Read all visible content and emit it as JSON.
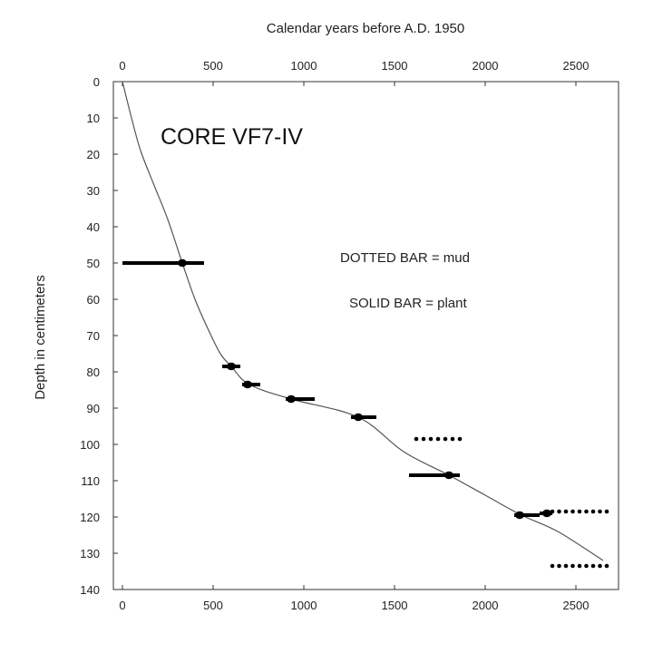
{
  "chart_data": {
    "type": "scatter",
    "title": "CORE VF7-IV",
    "xlabel": "Calendar years before A.D. 1950",
    "ylabel": "Depth in centimeters",
    "xlim": [
      0,
      2700
    ],
    "ylim": [
      0,
      140
    ],
    "x_ticks": [
      0,
      500,
      1000,
      1500,
      2000,
      2500
    ],
    "y_ticks": [
      0,
      10,
      20,
      30,
      40,
      50,
      60,
      70,
      80,
      90,
      100,
      110,
      120,
      130,
      140
    ],
    "x_axis_top": true,
    "y_inverted": true,
    "grid": false,
    "legend": {
      "dotted": "DOTTED BAR = mud",
      "solid": "SOLID BAR = plant"
    },
    "age_depth_curve": [
      {
        "x": 0,
        "y": 0
      },
      {
        "x": 50,
        "y": 10
      },
      {
        "x": 100,
        "y": 19
      },
      {
        "x": 170,
        "y": 28
      },
      {
        "x": 250,
        "y": 38
      },
      {
        "x": 330,
        "y": 50
      },
      {
        "x": 400,
        "y": 60
      },
      {
        "x": 470,
        "y": 68
      },
      {
        "x": 540,
        "y": 75
      },
      {
        "x": 600,
        "y": 78.5
      },
      {
        "x": 700,
        "y": 83.5
      },
      {
        "x": 930,
        "y": 87.5
      },
      {
        "x": 1300,
        "y": 92.5
      },
      {
        "x": 1550,
        "y": 102
      },
      {
        "x": 1800,
        "y": 108.5
      },
      {
        "x": 2000,
        "y": 114
      },
      {
        "x": 2200,
        "y": 119.5
      },
      {
        "x": 2400,
        "y": 124
      },
      {
        "x": 2650,
        "y": 132
      }
    ],
    "series": [
      {
        "type": "plant",
        "points": [
          {
            "x": 330,
            "y": 50,
            "xmin": 0,
            "xmax": 450
          },
          {
            "x": 600,
            "y": 78.5,
            "xmin": 550,
            "xmax": 650
          },
          {
            "x": 690,
            "y": 83.5,
            "xmin": 660,
            "xmax": 760
          },
          {
            "x": 930,
            "y": 87.5,
            "xmin": 900,
            "xmax": 1060
          },
          {
            "x": 1300,
            "y": 92.5,
            "xmin": 1260,
            "xmax": 1400
          },
          {
            "x": 1800,
            "y": 108.5,
            "xmin": 1580,
            "xmax": 1860
          },
          {
            "x": 2190,
            "y": 119.5,
            "xmin": 2160,
            "xmax": 2300
          },
          {
            "x": 2340,
            "y": 119,
            "xmin": 2300,
            "xmax": 2370
          }
        ]
      },
      {
        "type": "mud",
        "points": [
          {
            "x": 1740,
            "y": 98.5,
            "xmin": 1620,
            "xmax": 1860
          },
          {
            "x": 2520,
            "y": 118.5,
            "xmin": 2370,
            "xmax": 2670
          },
          {
            "x": 2520,
            "y": 133.5,
            "xmin": 2370,
            "xmax": 2670
          }
        ]
      }
    ]
  }
}
